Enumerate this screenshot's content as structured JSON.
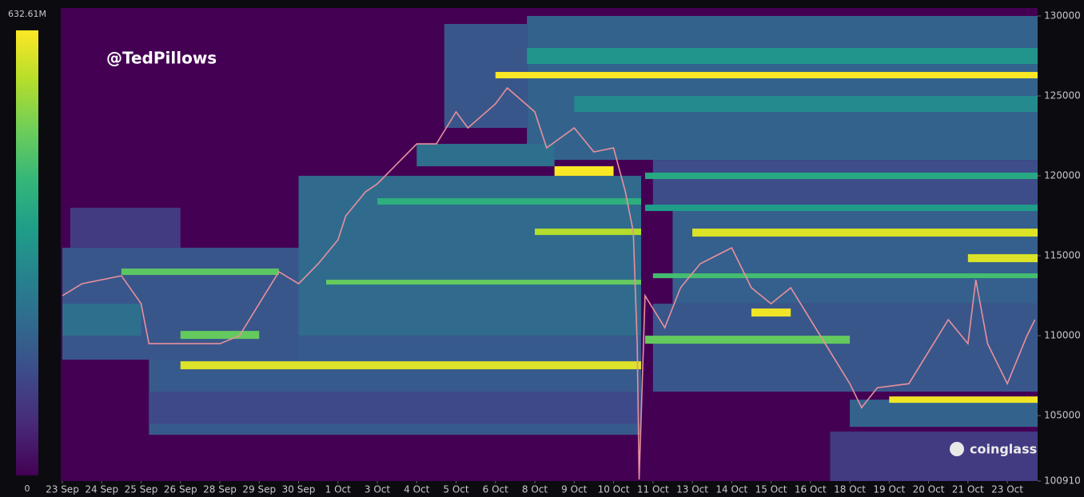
{
  "chart_data": {
    "type": "heatmap",
    "annotations": [
      "@TedPillows",
      "coinglass"
    ],
    "colorscale": [
      "#440154",
      "#482878",
      "#3e4989",
      "#31688e",
      "#26828e",
      "#1f9e89",
      "#35b779",
      "#6ece58",
      "#b5de2b",
      "#fde725"
    ],
    "clim": [
      0,
      632.61
    ],
    "cticks": [
      0,
      {
        "value": 632.61,
        "label": "632.61M"
      }
    ],
    "ylim": [
      100910,
      130500
    ],
    "yticks": [
      100910,
      105000,
      110000,
      115000,
      120000,
      125000,
      130000
    ],
    "xlim": [
      -0.04,
      24.77
    ],
    "xticks": [
      {
        "value": 0,
        "label": "23 Sep"
      },
      {
        "value": 1,
        "label": "24 Sep"
      },
      {
        "value": 2,
        "label": "25 Sep"
      },
      {
        "value": 3,
        "label": "26 Sep"
      },
      {
        "value": 4,
        "label": "28 Sep"
      },
      {
        "value": 5,
        "label": "29 Sep"
      },
      {
        "value": 6,
        "label": "30 Sep"
      },
      {
        "value": 7,
        "label": "1 Oct"
      },
      {
        "value": 8,
        "label": "3 Oct"
      },
      {
        "value": 9,
        "label": "4 Oct"
      },
      {
        "value": 10,
        "label": "5 Oct"
      },
      {
        "value": 11,
        "label": "6 Oct"
      },
      {
        "value": 12,
        "label": "8 Oct"
      },
      {
        "value": 13,
        "label": "9 Oct"
      },
      {
        "value": 14,
        "label": "10 Oct"
      },
      {
        "value": 15,
        "label": "11 Oct"
      },
      {
        "value": 16,
        "label": "13 Oct"
      },
      {
        "value": 17,
        "label": "14 Oct"
      },
      {
        "value": 18,
        "label": "15 Oct"
      },
      {
        "value": 19,
        "label": "16 Oct"
      },
      {
        "value": 20,
        "label": "18 Oct"
      },
      {
        "value": 21,
        "label": "19 Oct"
      },
      {
        "value": 22,
        "label": "20 Oct"
      },
      {
        "value": 23,
        "label": "21 Oct"
      },
      {
        "value": 24,
        "label": "23 Oct"
      }
    ],
    "cells": [
      {
        "y": [
          121000,
          130000
        ],
        "x": [
          11.8,
          24.77
        ],
        "value": 200
      },
      {
        "y": [
          123000,
          129500
        ],
        "x": [
          9.7,
          11.8
        ],
        "value": 170
      },
      {
        "y": [
          127000,
          128000
        ],
        "x": [
          11.8,
          24.77
        ],
        "value": 330
      },
      {
        "y": [
          124000,
          125000
        ],
        "x": [
          13,
          24.77
        ],
        "value": 300
      },
      {
        "y": [
          126100,
          126500
        ],
        "x": [
          11,
          24.77
        ],
        "value": 630
      },
      {
        "y": [
          103800,
          110000
        ],
        "x": [
          2.2,
          14.7
        ],
        "value": 180
      },
      {
        "y": [
          104500,
          106500
        ],
        "x": [
          2.2,
          14.7
        ],
        "value": 140
      },
      {
        "y": [
          110000,
          120000
        ],
        "x": [
          6,
          14.7
        ],
        "value": 220
      },
      {
        "y": [
          120600,
          122000
        ],
        "x": [
          9,
          12.5
        ],
        "value": 230
      },
      {
        "y": [
          108500,
          115500
        ],
        "x": [
          0,
          6
        ],
        "value": 170
      },
      {
        "y": [
          110000,
          112000
        ],
        "x": [
          0,
          2
        ],
        "value": 230
      },
      {
        "y": [
          115500,
          118000
        ],
        "x": [
          0.2,
          3
        ],
        "value": 110
      },
      {
        "y": [
          107900,
          108400
        ],
        "x": [
          3,
          14.7
        ],
        "value": 600
      },
      {
        "y": [
          113200,
          113500
        ],
        "x": [
          6.7,
          14.7
        ],
        "value": 480
      },
      {
        "y": [
          116300,
          116700
        ],
        "x": [
          12,
          14.7
        ],
        "value": 560
      },
      {
        "y": [
          118200,
          118600
        ],
        "x": [
          8,
          14.7
        ],
        "value": 400
      },
      {
        "y": [
          120000,
          120600
        ],
        "x": [
          12.5,
          14
        ],
        "value": 630
      },
      {
        "y": [
          113800,
          114200
        ],
        "x": [
          1.5,
          5.5
        ],
        "value": 470
      },
      {
        "y": [
          109800,
          110300
        ],
        "x": [
          3,
          5
        ],
        "value": 480
      },
      {
        "y": [
          100910,
          104000
        ],
        "x": [
          19.5,
          24.77
        ],
        "value": 110
      },
      {
        "y": [
          104300,
          106000
        ],
        "x": [
          20,
          24.77
        ],
        "value": 200
      },
      {
        "y": [
          106500,
          112000
        ],
        "x": [
          15,
          24.77
        ],
        "value": 170
      },
      {
        "y": [
          112000,
          118000
        ],
        "x": [
          15.5,
          24.77
        ],
        "value": 190
      },
      {
        "y": [
          118000,
          121000
        ],
        "x": [
          15,
          24.77
        ],
        "value": 150
      },
      {
        "y": [
          105800,
          106200
        ],
        "x": [
          21,
          24.77
        ],
        "value": 620
      },
      {
        "y": [
          116200,
          116700
        ],
        "x": [
          16,
          24.77
        ],
        "value": 600
      },
      {
        "y": [
          114600,
          115100
        ],
        "x": [
          23,
          24.77
        ],
        "value": 600
      },
      {
        "y": [
          113600,
          113900
        ],
        "x": [
          15,
          24.77
        ],
        "value": 440
      },
      {
        "y": [
          111200,
          111700
        ],
        "x": [
          17.5,
          18.5
        ],
        "value": 620
      },
      {
        "y": [
          109500,
          110000
        ],
        "x": [
          14.8,
          20
        ],
        "value": 480
      },
      {
        "y": [
          119800,
          120200
        ],
        "x": [
          14.8,
          24.77
        ],
        "value": 380
      },
      {
        "y": [
          117800,
          118200
        ],
        "x": [
          14.8,
          24.77
        ],
        "value": 350
      }
    ],
    "price": {
      "color": "#e8909c",
      "x": [
        0,
        0.5,
        1.5,
        2,
        2.2,
        3,
        4,
        4.5,
        5,
        5.5,
        6,
        6.5,
        7,
        7.2,
        7.7,
        8,
        8.5,
        9,
        9.5,
        10,
        10.3,
        11,
        11.3,
        12,
        12.3,
        13,
        13.5,
        14,
        14.3,
        14.5,
        14.6,
        14.65,
        14.8,
        15.3,
        15.7,
        16.2,
        17,
        17.5,
        18,
        18.5,
        19,
        19.5,
        20,
        20.3,
        20.7,
        21.5,
        22,
        22.5,
        23,
        23.2,
        23.5,
        24,
        24.5,
        24.7
      ],
      "values": [
        112500,
        113250,
        113750,
        112000,
        109500,
        109500,
        109500,
        110000,
        112000,
        114000,
        113250,
        114500,
        116000,
        117500,
        119000,
        119500,
        120750,
        122000,
        122000,
        124000,
        123000,
        124500,
        125500,
        124000,
        121750,
        123000,
        121500,
        121750,
        119000,
        116500,
        109500,
        101000,
        112500,
        110500,
        113000,
        114500,
        115500,
        113000,
        112000,
        113000,
        111000,
        109000,
        107000,
        105500,
        106750,
        107000,
        109000,
        111000,
        109500,
        113500,
        109500,
        107000,
        110000,
        111000
      ]
    }
  }
}
